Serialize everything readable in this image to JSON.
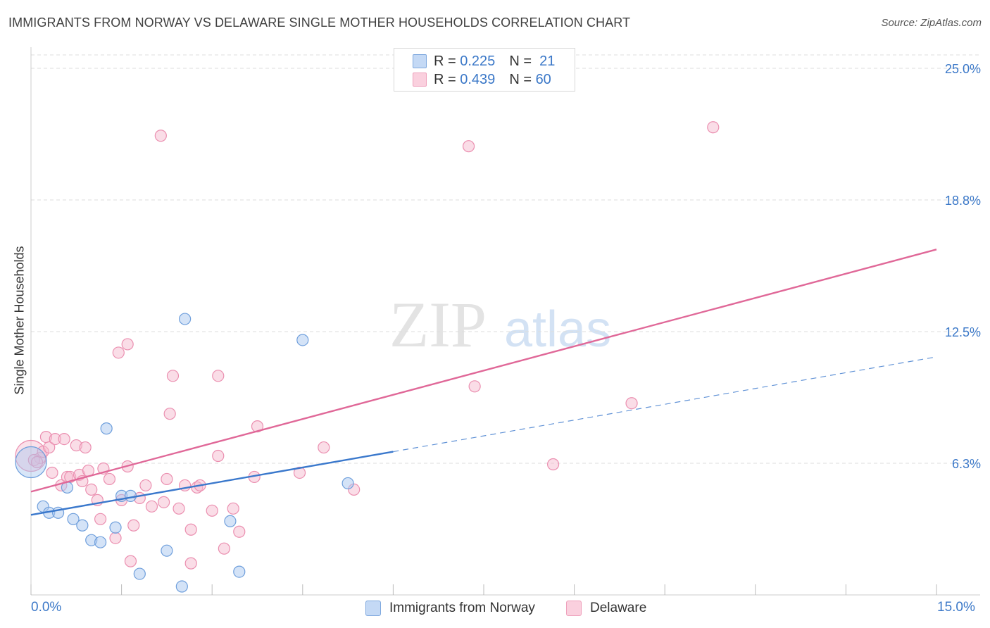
{
  "title": "IMMIGRANTS FROM NORWAY VS DELAWARE SINGLE MOTHER HOUSEHOLDS CORRELATION CHART",
  "source": "Source: ZipAtlas.com",
  "watermark": {
    "zip": "ZIP",
    "atlas": "atlas"
  },
  "colors": {
    "blue_fill": "#a9c8f0",
    "blue_stroke": "#6f9fdc",
    "blue_line": "#3a78cc",
    "pink_fill": "#f6bcd0",
    "pink_stroke": "#eb8fb0",
    "pink_line": "#e06898",
    "axis_text": "#3b78c8",
    "grid": "#dddddd"
  },
  "legend_stats": [
    {
      "r_label": "R =",
      "r_value": "0.225",
      "n_label": "N =",
      "n_value": "21"
    },
    {
      "r_label": "R =",
      "r_value": "0.439",
      "n_label": "N =",
      "n_value": "60"
    }
  ],
  "chart_data": {
    "type": "scatter",
    "title": "IMMIGRANTS FROM NORWAY VS DELAWARE SINGLE MOTHER HOUSEHOLDS CORRELATION CHART",
    "xlabel": "",
    "ylabel": "Single Mother Households",
    "xlim": [
      0,
      15
    ],
    "ylim": [
      0,
      26
    ],
    "x_tick_labels": {
      "min": "0.0%",
      "max": "15.0%"
    },
    "y_ticks": [
      {
        "value": 6.3,
        "label": "6.3%"
      },
      {
        "value": 12.5,
        "label": "12.5%"
      },
      {
        "value": 18.8,
        "label": "18.8%"
      },
      {
        "value": 25.0,
        "label": "25.0%"
      }
    ],
    "series": [
      {
        "name": "Immigrants from Norway",
        "color": "blue",
        "points": [
          [
            0.0,
            6.3
          ],
          [
            0.2,
            4.2
          ],
          [
            0.3,
            3.9
          ],
          [
            0.45,
            3.9
          ],
          [
            0.6,
            5.1
          ],
          [
            0.7,
            3.6
          ],
          [
            0.85,
            3.3
          ],
          [
            1.0,
            2.6
          ],
          [
            1.15,
            2.5
          ],
          [
            1.25,
            7.9
          ],
          [
            1.4,
            3.2
          ],
          [
            1.5,
            4.7
          ],
          [
            1.65,
            4.7
          ],
          [
            1.8,
            1.0
          ],
          [
            2.25,
            2.1
          ],
          [
            2.5,
            0.4
          ],
          [
            2.55,
            13.1
          ],
          [
            3.3,
            3.5
          ],
          [
            3.45,
            1.1
          ],
          [
            4.5,
            12.1
          ],
          [
            5.25,
            5.3
          ]
        ],
        "trend": {
          "x_start": 0.0,
          "y_start": 3.8,
          "x_solid_end": 6.0,
          "y_solid_end": 6.8,
          "x_end": 15.0,
          "y_end": 11.3
        }
      },
      {
        "name": "Delaware",
        "color": "pink",
        "points": [
          [
            0.0,
            6.6
          ],
          [
            0.15,
            6.5
          ],
          [
            0.2,
            6.8
          ],
          [
            0.25,
            7.5
          ],
          [
            0.3,
            7.0
          ],
          [
            0.35,
            5.8
          ],
          [
            0.4,
            7.4
          ],
          [
            0.5,
            5.2
          ],
          [
            0.55,
            7.4
          ],
          [
            0.6,
            5.6
          ],
          [
            0.65,
            5.6
          ],
          [
            0.75,
            7.1
          ],
          [
            0.8,
            5.7
          ],
          [
            0.85,
            5.4
          ],
          [
            0.9,
            7.0
          ],
          [
            0.95,
            5.9
          ],
          [
            1.0,
            5.0
          ],
          [
            1.1,
            4.5
          ],
          [
            1.15,
            3.6
          ],
          [
            1.2,
            6.0
          ],
          [
            1.3,
            5.5
          ],
          [
            1.4,
            2.7
          ],
          [
            1.45,
            11.5
          ],
          [
            1.5,
            4.5
          ],
          [
            1.6,
            11.9
          ],
          [
            1.6,
            6.1
          ],
          [
            1.65,
            1.6
          ],
          [
            1.7,
            3.3
          ],
          [
            1.8,
            4.6
          ],
          [
            1.9,
            5.2
          ],
          [
            2.0,
            4.2
          ],
          [
            2.15,
            21.8
          ],
          [
            2.2,
            4.4
          ],
          [
            2.25,
            5.5
          ],
          [
            2.3,
            8.6
          ],
          [
            2.35,
            10.4
          ],
          [
            2.45,
            4.1
          ],
          [
            2.55,
            5.2
          ],
          [
            2.65,
            3.1
          ],
          [
            2.65,
            1.5
          ],
          [
            2.75,
            5.1
          ],
          [
            2.8,
            5.2
          ],
          [
            3.0,
            4.0
          ],
          [
            3.1,
            6.6
          ],
          [
            3.1,
            10.4
          ],
          [
            3.2,
            2.2
          ],
          [
            3.35,
            4.1
          ],
          [
            3.45,
            3.0
          ],
          [
            3.7,
            5.6
          ],
          [
            3.75,
            8.0
          ],
          [
            4.45,
            5.8
          ],
          [
            4.85,
            7.0
          ],
          [
            5.35,
            5.0
          ],
          [
            7.25,
            21.3
          ],
          [
            7.35,
            9.9
          ],
          [
            8.65,
            6.2
          ],
          [
            9.95,
            9.1
          ],
          [
            11.3,
            22.2
          ],
          [
            0.05,
            6.4
          ],
          [
            0.1,
            6.3
          ]
        ],
        "trend": {
          "x_start": 0.0,
          "y_start": 4.9,
          "x_end": 15.0,
          "y_end": 16.4
        }
      }
    ],
    "legend": [
      "Immigrants from Norway",
      "Delaware"
    ],
    "grid": true
  }
}
